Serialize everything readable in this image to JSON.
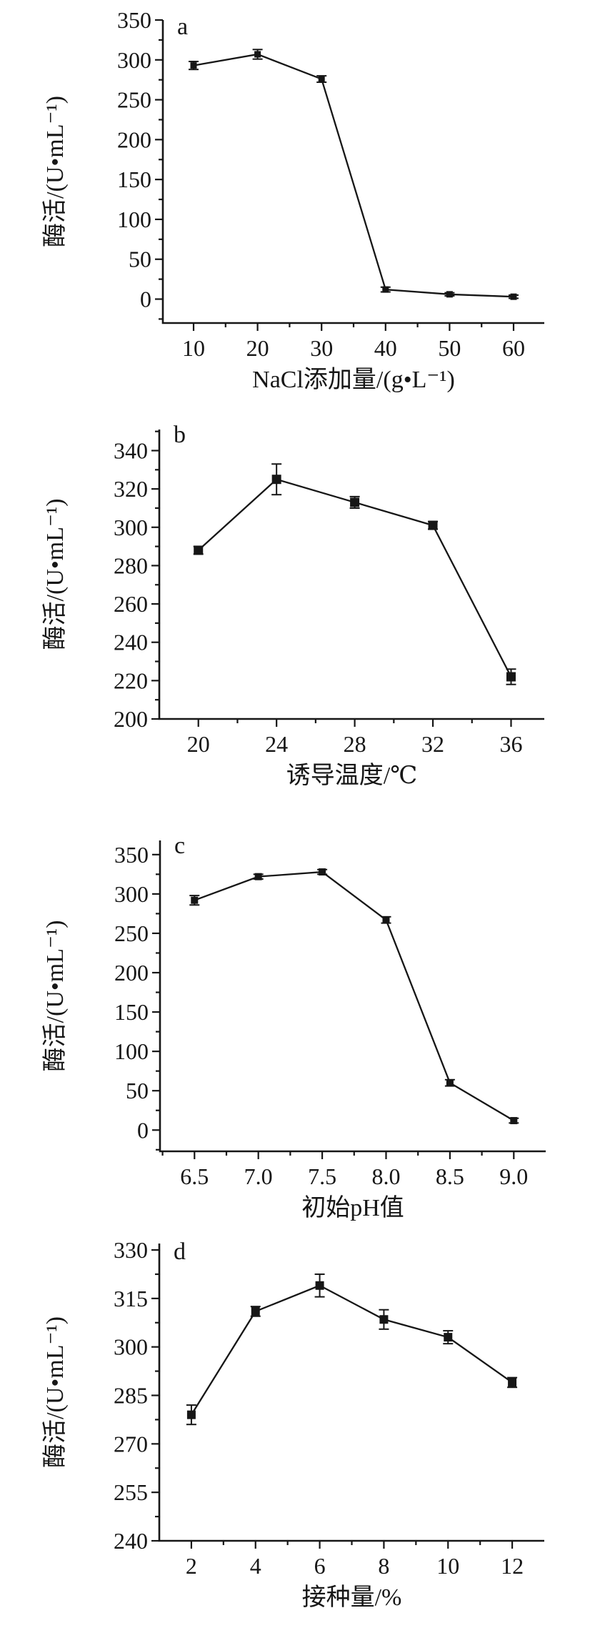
{
  "figure": {
    "background": "#ffffff",
    "ink_color": "#161616",
    "panel_count": 4
  },
  "chart_data": [
    {
      "type": "line",
      "panel_label": "a",
      "title": "",
      "xlabel": "NaCl添加量/(g•L⁻¹)",
      "ylabel": "酶活/(U•mL⁻¹)",
      "x": [
        10,
        20,
        30,
        40,
        50,
        60
      ],
      "series": [
        {
          "name": "enzyme-activity",
          "values": [
            293,
            307,
            276,
            12,
            6,
            3
          ],
          "errors": [
            5,
            6,
            4,
            3,
            2,
            2
          ]
        }
      ],
      "xlim": [
        5.2,
        64.8
      ],
      "ylim": [
        -30,
        350
      ],
      "xticks": [
        10,
        20,
        30,
        40,
        50,
        60
      ],
      "xtick_labels": [
        "10",
        "20",
        "30",
        "40",
        "50",
        "60"
      ],
      "x_minor_step": 5,
      "yticks": [
        0,
        50,
        100,
        150,
        200,
        250,
        300,
        350
      ],
      "ytick_labels": [
        "0",
        "50",
        "100",
        "150",
        "200",
        "250",
        "300",
        "350"
      ],
      "y_minor_step": 25,
      "grid": false,
      "legend": "none",
      "marker": "filled-square"
    },
    {
      "type": "line",
      "panel_label": "b",
      "title": "",
      "xlabel": "诱导温度/℃",
      "ylabel": "酶活/(U•mL⁻¹)",
      "x": [
        20,
        24,
        28,
        32,
        36
      ],
      "series": [
        {
          "name": "enzyme-activity",
          "values": [
            288,
            325,
            313,
            301,
            222
          ],
          "errors": [
            2,
            8,
            3,
            2,
            4
          ]
        }
      ],
      "xlim": [
        18,
        37.7
      ],
      "ylim": [
        200,
        351
      ],
      "xticks": [
        20,
        24,
        28,
        32,
        36
      ],
      "xtick_labels": [
        "20",
        "24",
        "28",
        "32",
        "36"
      ],
      "x_minor_step": 2,
      "yticks": [
        200,
        220,
        240,
        260,
        280,
        300,
        320,
        340
      ],
      "ytick_labels": [
        "200",
        "220",
        "240",
        "260",
        "280",
        "300",
        "320",
        "340"
      ],
      "y_minor_step": 10,
      "grid": false,
      "legend": "none",
      "marker": "filled-square"
    },
    {
      "type": "line",
      "panel_label": "c",
      "title": "",
      "xlabel": "初始pH值",
      "ylabel": "酶活/(U•mL⁻¹)",
      "x": [
        6.5,
        7.0,
        7.5,
        8.0,
        8.5,
        9.0
      ],
      "series": [
        {
          "name": "enzyme-activity",
          "values": [
            292,
            322,
            328,
            267,
            60,
            12
          ],
          "errors": [
            6,
            3,
            3,
            4,
            4,
            3
          ]
        }
      ],
      "xlim": [
        6.23,
        9.25
      ],
      "ylim": [
        -27,
        368
      ],
      "xticks": [
        6.5,
        7.0,
        7.5,
        8.0,
        8.5,
        9.0
      ],
      "xtick_labels": [
        "6.5",
        "7.0",
        "7.5",
        "8.0",
        "8.5",
        "9.0"
      ],
      "x_minor_step": 0.25,
      "yticks": [
        0,
        50,
        100,
        150,
        200,
        250,
        300,
        350
      ],
      "ytick_labels": [
        "0",
        "50",
        "100",
        "150",
        "200",
        "250",
        "300",
        "350"
      ],
      "y_minor_step": 25,
      "grid": false,
      "legend": "none",
      "marker": "filled-square"
    },
    {
      "type": "line",
      "panel_label": "d",
      "title": "",
      "xlabel": "接种量/%",
      "ylabel": "酶活/(U•mL⁻¹)",
      "x": [
        2,
        4,
        6,
        8,
        10,
        12
      ],
      "series": [
        {
          "name": "enzyme-activity",
          "values": [
            279,
            311,
            319,
            308.5,
            303,
            289
          ],
          "errors": [
            3,
            1.5,
            3.5,
            3,
            2,
            1.5
          ]
        }
      ],
      "xlim": [
        1.0,
        13.0
      ],
      "ylim": [
        240,
        332
      ],
      "xticks": [
        2,
        4,
        6,
        8,
        10,
        12
      ],
      "xtick_labels": [
        "2",
        "4",
        "6",
        "8",
        "10",
        "12"
      ],
      "x_minor_step": 1,
      "yticks": [
        240,
        255,
        270,
        285,
        300,
        315,
        330
      ],
      "ytick_labels": [
        "240",
        "255",
        "270",
        "285",
        "300",
        "315",
        "330"
      ],
      "y_minor_step": 7.5,
      "grid": false,
      "legend": "none",
      "marker": "filled-square"
    }
  ]
}
